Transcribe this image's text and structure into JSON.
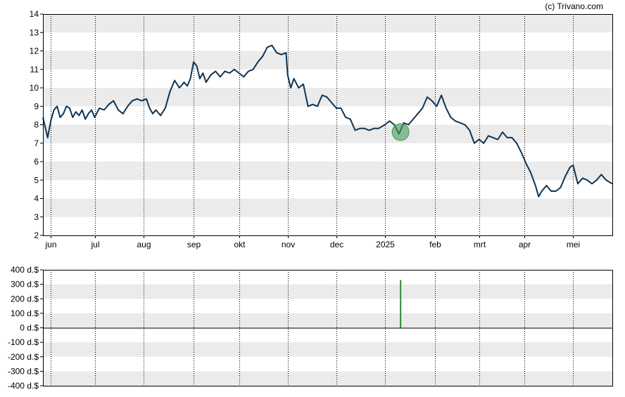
{
  "credit": "(c) Trivano.com",
  "colors": {
    "line": "#0d3556",
    "band": "#ebebeb",
    "marker": "#4a9a5a",
    "bar": "#2e8b3e",
    "frame": "#000000"
  },
  "chart_data": [
    {
      "type": "line",
      "title": "",
      "xlabel": "",
      "ylabel": "",
      "ylim": [
        2,
        14
      ],
      "yticks": [
        "2",
        "3",
        "4",
        "5",
        "6",
        "7",
        "8",
        "9",
        "10",
        "11",
        "12",
        "13",
        "14"
      ],
      "grid": true,
      "months": [
        {
          "label": "jun",
          "date": "2024-06-03"
        },
        {
          "label": "jul",
          "date": "2024-07-01"
        },
        {
          "label": "aug",
          "date": "2024-08-01"
        },
        {
          "label": "sep",
          "date": "2024-09-02"
        },
        {
          "label": "okt",
          "date": "2024-10-01"
        },
        {
          "label": "nov",
          "date": "2024-11-01"
        },
        {
          "label": "dec",
          "date": "2024-12-02"
        },
        {
          "label": "2025",
          "date": "2025-01-02"
        },
        {
          "label": "feb",
          "date": "2025-02-03"
        },
        {
          "label": "mrt",
          "date": "2025-03-03"
        },
        {
          "label": "apr",
          "date": "2025-04-01"
        },
        {
          "label": "mei",
          "date": "2025-05-02"
        }
      ],
      "xlim": [
        "2024-05-29",
        "2025-05-27"
      ],
      "series": [
        {
          "points": [
            [
              "2024-05-29",
              8.4
            ],
            [
              "2024-06-01",
              7.3
            ],
            [
              "2024-06-03",
              8.2
            ],
            [
              "2024-06-05",
              8.8
            ],
            [
              "2024-06-07",
              9.0
            ],
            [
              "2024-06-09",
              8.4
            ],
            [
              "2024-06-11",
              8.6
            ],
            [
              "2024-06-13",
              9.0
            ],
            [
              "2024-06-15",
              8.9
            ],
            [
              "2024-06-17",
              8.4
            ],
            [
              "2024-06-19",
              8.7
            ],
            [
              "2024-06-21",
              8.5
            ],
            [
              "2024-06-23",
              8.8
            ],
            [
              "2024-06-25",
              8.3
            ],
            [
              "2024-06-27",
              8.6
            ],
            [
              "2024-06-29",
              8.8
            ],
            [
              "2024-07-01",
              8.4
            ],
            [
              "2024-07-04",
              8.9
            ],
            [
              "2024-07-07",
              8.8
            ],
            [
              "2024-07-10",
              9.1
            ],
            [
              "2024-07-13",
              9.3
            ],
            [
              "2024-07-16",
              8.8
            ],
            [
              "2024-07-19",
              8.6
            ],
            [
              "2024-07-22",
              9.0
            ],
            [
              "2024-07-25",
              9.3
            ],
            [
              "2024-07-28",
              9.4
            ],
            [
              "2024-07-31",
              9.3
            ],
            [
              "2024-08-03",
              9.4
            ],
            [
              "2024-08-05",
              8.9
            ],
            [
              "2024-08-07",
              8.6
            ],
            [
              "2024-08-09",
              8.8
            ],
            [
              "2024-08-12",
              8.5
            ],
            [
              "2024-08-15",
              8.9
            ],
            [
              "2024-08-18",
              9.8
            ],
            [
              "2024-08-21",
              10.4
            ],
            [
              "2024-08-24",
              10.0
            ],
            [
              "2024-08-27",
              10.3
            ],
            [
              "2024-08-29",
              10.1
            ],
            [
              "2024-08-31",
              10.5
            ],
            [
              "2024-09-02",
              11.4
            ],
            [
              "2024-09-04",
              11.2
            ],
            [
              "2024-09-06",
              10.5
            ],
            [
              "2024-09-08",
              10.8
            ],
            [
              "2024-09-10",
              10.3
            ],
            [
              "2024-09-13",
              10.7
            ],
            [
              "2024-09-16",
              10.9
            ],
            [
              "2024-09-19",
              10.6
            ],
            [
              "2024-09-22",
              10.9
            ],
            [
              "2024-09-25",
              10.8
            ],
            [
              "2024-09-28",
              11.0
            ],
            [
              "2024-10-01",
              10.8
            ],
            [
              "2024-10-04",
              10.6
            ],
            [
              "2024-10-07",
              10.9
            ],
            [
              "2024-10-10",
              11.0
            ],
            [
              "2024-10-13",
              11.4
            ],
            [
              "2024-10-16",
              11.7
            ],
            [
              "2024-10-19",
              12.2
            ],
            [
              "2024-10-22",
              12.3
            ],
            [
              "2024-10-25",
              11.9
            ],
            [
              "2024-10-28",
              11.8
            ],
            [
              "2024-10-31",
              11.9
            ],
            [
              "2024-11-01",
              10.7
            ],
            [
              "2024-11-03",
              10.0
            ],
            [
              "2024-11-05",
              10.5
            ],
            [
              "2024-11-08",
              10.0
            ],
            [
              "2024-11-11",
              10.2
            ],
            [
              "2024-11-14",
              9.0
            ],
            [
              "2024-11-17",
              9.1
            ],
            [
              "2024-11-20",
              9.0
            ],
            [
              "2024-11-23",
              9.6
            ],
            [
              "2024-11-26",
              9.5
            ],
            [
              "2024-11-29",
              9.2
            ],
            [
              "2024-12-02",
              8.9
            ],
            [
              "2024-12-05",
              8.9
            ],
            [
              "2024-12-08",
              8.4
            ],
            [
              "2024-12-11",
              8.3
            ],
            [
              "2024-12-14",
              7.7
            ],
            [
              "2024-12-17",
              7.8
            ],
            [
              "2024-12-20",
              7.8
            ],
            [
              "2024-12-23",
              7.7
            ],
            [
              "2024-12-26",
              7.8
            ],
            [
              "2024-12-29",
              7.8
            ],
            [
              "2025-01-02",
              8.0
            ],
            [
              "2025-01-05",
              8.2
            ],
            [
              "2025-01-08",
              8.0
            ],
            [
              "2025-01-11",
              7.5
            ],
            [
              "2025-01-14",
              8.1
            ],
            [
              "2025-01-17",
              8.0
            ],
            [
              "2025-01-20",
              8.3
            ],
            [
              "2025-01-23",
              8.6
            ],
            [
              "2025-01-26",
              8.9
            ],
            [
              "2025-01-29",
              9.5
            ],
            [
              "2025-02-01",
              9.3
            ],
            [
              "2025-02-04",
              9.0
            ],
            [
              "2025-02-07",
              9.6
            ],
            [
              "2025-02-10",
              8.9
            ],
            [
              "2025-02-13",
              8.4
            ],
            [
              "2025-02-16",
              8.2
            ],
            [
              "2025-02-19",
              8.1
            ],
            [
              "2025-02-22",
              8.0
            ],
            [
              "2025-02-25",
              7.7
            ],
            [
              "2025-02-28",
              7.0
            ],
            [
              "2025-03-03",
              7.2
            ],
            [
              "2025-03-06",
              7.0
            ],
            [
              "2025-03-09",
              7.4
            ],
            [
              "2025-03-12",
              7.3
            ],
            [
              "2025-03-15",
              7.2
            ],
            [
              "2025-03-18",
              7.6
            ],
            [
              "2025-03-21",
              7.3
            ],
            [
              "2025-03-24",
              7.3
            ],
            [
              "2025-03-27",
              7.0
            ],
            [
              "2025-03-30",
              6.5
            ],
            [
              "2025-04-02",
              5.9
            ],
            [
              "2025-04-05",
              5.4
            ],
            [
              "2025-04-08",
              4.7
            ],
            [
              "2025-04-10",
              4.1
            ],
            [
              "2025-04-12",
              4.4
            ],
            [
              "2025-04-15",
              4.7
            ],
            [
              "2025-04-18",
              4.4
            ],
            [
              "2025-04-21",
              4.4
            ],
            [
              "2025-04-24",
              4.6
            ],
            [
              "2025-04-27",
              5.2
            ],
            [
              "2025-04-30",
              5.7
            ],
            [
              "2025-05-02",
              5.8
            ],
            [
              "2025-05-05",
              4.8
            ],
            [
              "2025-05-08",
              5.1
            ],
            [
              "2025-05-11",
              5.0
            ],
            [
              "2025-05-14",
              4.8
            ],
            [
              "2025-05-17",
              5.0
            ],
            [
              "2025-05-20",
              5.3
            ],
            [
              "2025-05-23",
              5.0
            ],
            [
              "2025-05-27",
              4.8
            ]
          ]
        }
      ],
      "annotations": [
        {
          "type": "marker",
          "date": "2025-01-12",
          "value": 7.6
        }
      ]
    },
    {
      "type": "bar",
      "title": "",
      "xlabel": "",
      "ylabel": "",
      "ylim": [
        -400,
        400
      ],
      "yticks": [
        "400 d.$",
        "300 d.$",
        "200 d.$",
        "100 d.$",
        "0 d.$",
        "-100 d.$",
        "-200 d.$",
        "-300 d.$",
        "-400 d.$"
      ],
      "yticks_values": [
        400,
        300,
        200,
        100,
        0,
        -100,
        -200,
        -300,
        -400
      ],
      "grid": true,
      "xlim": [
        "2024-05-29",
        "2025-05-27"
      ],
      "bars": [
        {
          "date": "2025-01-12",
          "value": 330
        }
      ]
    }
  ]
}
